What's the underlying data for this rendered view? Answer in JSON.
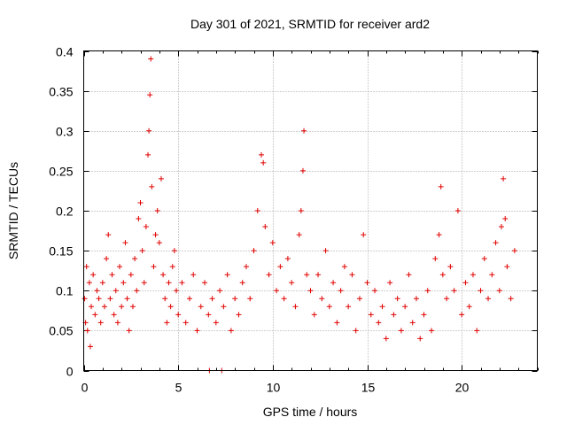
{
  "chart_data": {
    "type": "scatter",
    "title": "Day 301 of 2021, SRMTID for receiver ard2",
    "xlabel": "GPS time / hours",
    "ylabel": "SRMTID / TECUs",
    "xlim": [
      0,
      24
    ],
    "ylim": [
      0,
      0.4
    ],
    "x_ticks": [
      0,
      5,
      10,
      15,
      20
    ],
    "x_tick_labels": [
      "0",
      "5",
      "10",
      "15",
      "20"
    ],
    "y_ticks": [
      0,
      0.05,
      0.1,
      0.15,
      0.2,
      0.25,
      0.3,
      0.35,
      0.4
    ],
    "y_tick_labels": [
      "0",
      "0.05",
      "0.1",
      "0.15",
      "0.2",
      "0.25",
      "0.3",
      "0.35",
      "0.4"
    ],
    "grid": true,
    "marker": "+",
    "color": "#e00000",
    "series": [
      {
        "name": "SRMTID",
        "points": [
          [
            0.05,
            0.09
          ],
          [
            0.1,
            0.06
          ],
          [
            0.15,
            0.13
          ],
          [
            0.2,
            0.05
          ],
          [
            0.3,
            0.11
          ],
          [
            0.35,
            0.03
          ],
          [
            0.4,
            0.08
          ],
          [
            0.5,
            0.12
          ],
          [
            0.6,
            0.07
          ],
          [
            0.7,
            0.1
          ],
          [
            0.8,
            0.09
          ],
          [
            0.9,
            0.06
          ],
          [
            1.0,
            0.11
          ],
          [
            1.1,
            0.08
          ],
          [
            1.2,
            0.14
          ],
          [
            1.3,
            0.17
          ],
          [
            1.4,
            0.09
          ],
          [
            1.5,
            0.12
          ],
          [
            1.6,
            0.07
          ],
          [
            1.7,
            0.1
          ],
          [
            1.8,
            0.06
          ],
          [
            1.9,
            0.13
          ],
          [
            2.0,
            0.08
          ],
          [
            2.1,
            0.11
          ],
          [
            2.2,
            0.16
          ],
          [
            2.3,
            0.09
          ],
          [
            2.4,
            0.05
          ],
          [
            2.5,
            0.12
          ],
          [
            2.6,
            0.08
          ],
          [
            2.7,
            0.14
          ],
          [
            2.8,
            0.1
          ],
          [
            2.9,
            0.19
          ],
          [
            3.0,
            0.21
          ],
          [
            3.1,
            0.15
          ],
          [
            3.2,
            0.11
          ],
          [
            3.3,
            0.18
          ],
          [
            3.4,
            0.27
          ],
          [
            3.45,
            0.3
          ],
          [
            3.5,
            0.345
          ],
          [
            3.55,
            0.39
          ],
          [
            3.6,
            0.23
          ],
          [
            3.7,
            0.13
          ],
          [
            3.8,
            0.17
          ],
          [
            3.9,
            0.2
          ],
          [
            4.0,
            0.16
          ],
          [
            4.1,
            0.24
          ],
          [
            4.2,
            0.12
          ],
          [
            4.3,
            0.09
          ],
          [
            4.4,
            0.06
          ],
          [
            4.5,
            0.11
          ],
          [
            4.6,
            0.08
          ],
          [
            4.7,
            0.13
          ],
          [
            4.8,
            0.15
          ],
          [
            4.9,
            0.1
          ],
          [
            5.0,
            0.07
          ],
          [
            5.2,
            0.11
          ],
          [
            5.4,
            0.06
          ],
          [
            5.6,
            0.09
          ],
          [
            5.8,
            0.12
          ],
          [
            6.0,
            0.05
          ],
          [
            6.2,
            0.08
          ],
          [
            6.4,
            0.11
          ],
          [
            6.6,
            0.07
          ],
          [
            6.65,
            0.0
          ],
          [
            6.8,
            0.09
          ],
          [
            7.0,
            0.06
          ],
          [
            7.2,
            0.1
          ],
          [
            7.3,
            0.0
          ],
          [
            7.4,
            0.08
          ],
          [
            7.6,
            0.12
          ],
          [
            7.8,
            0.05
          ],
          [
            8.0,
            0.09
          ],
          [
            8.2,
            0.07
          ],
          [
            8.4,
            0.11
          ],
          [
            8.6,
            0.13
          ],
          [
            8.8,
            0.09
          ],
          [
            9.0,
            0.15
          ],
          [
            9.2,
            0.2
          ],
          [
            9.4,
            0.27
          ],
          [
            9.5,
            0.26
          ],
          [
            9.6,
            0.18
          ],
          [
            9.8,
            0.12
          ],
          [
            10.0,
            0.16
          ],
          [
            10.2,
            0.1
          ],
          [
            10.4,
            0.13
          ],
          [
            10.6,
            0.09
          ],
          [
            10.8,
            0.14
          ],
          [
            11.0,
            0.11
          ],
          [
            11.2,
            0.08
          ],
          [
            11.4,
            0.17
          ],
          [
            11.5,
            0.2
          ],
          [
            11.6,
            0.25
          ],
          [
            11.65,
            0.3
          ],
          [
            11.8,
            0.12
          ],
          [
            12.0,
            0.1
          ],
          [
            12.2,
            0.07
          ],
          [
            12.4,
            0.12
          ],
          [
            12.6,
            0.09
          ],
          [
            12.8,
            0.15
          ],
          [
            13.0,
            0.08
          ],
          [
            13.2,
            0.11
          ],
          [
            13.4,
            0.06
          ],
          [
            13.6,
            0.1
          ],
          [
            13.8,
            0.13
          ],
          [
            14.0,
            0.08
          ],
          [
            14.2,
            0.12
          ],
          [
            14.4,
            0.05
          ],
          [
            14.6,
            0.09
          ],
          [
            14.8,
            0.17
          ],
          [
            15.0,
            0.11
          ],
          [
            15.2,
            0.07
          ],
          [
            15.4,
            0.1
          ],
          [
            15.6,
            0.06
          ],
          [
            15.8,
            0.08
          ],
          [
            16.0,
            0.04
          ],
          [
            16.2,
            0.11
          ],
          [
            16.4,
            0.07
          ],
          [
            16.6,
            0.09
          ],
          [
            16.8,
            0.05
          ],
          [
            17.0,
            0.08
          ],
          [
            17.2,
            0.12
          ],
          [
            17.4,
            0.06
          ],
          [
            17.6,
            0.09
          ],
          [
            17.8,
            0.04
          ],
          [
            18.0,
            0.07
          ],
          [
            18.2,
            0.1
          ],
          [
            18.4,
            0.05
          ],
          [
            18.6,
            0.14
          ],
          [
            18.8,
            0.17
          ],
          [
            18.9,
            0.23
          ],
          [
            19.0,
            0.12
          ],
          [
            19.2,
            0.09
          ],
          [
            19.4,
            0.13
          ],
          [
            19.6,
            0.1
          ],
          [
            19.8,
            0.2
          ],
          [
            20.0,
            0.07
          ],
          [
            20.2,
            0.11
          ],
          [
            20.4,
            0.08
          ],
          [
            20.6,
            0.12
          ],
          [
            20.8,
            0.05
          ],
          [
            21.0,
            0.1
          ],
          [
            21.2,
            0.14
          ],
          [
            21.4,
            0.09
          ],
          [
            21.6,
            0.12
          ],
          [
            21.8,
            0.16
          ],
          [
            22.0,
            0.1
          ],
          [
            22.1,
            0.18
          ],
          [
            22.2,
            0.24
          ],
          [
            22.3,
            0.19
          ],
          [
            22.4,
            0.13
          ],
          [
            22.6,
            0.09
          ],
          [
            22.8,
            0.15
          ]
        ]
      }
    ]
  }
}
